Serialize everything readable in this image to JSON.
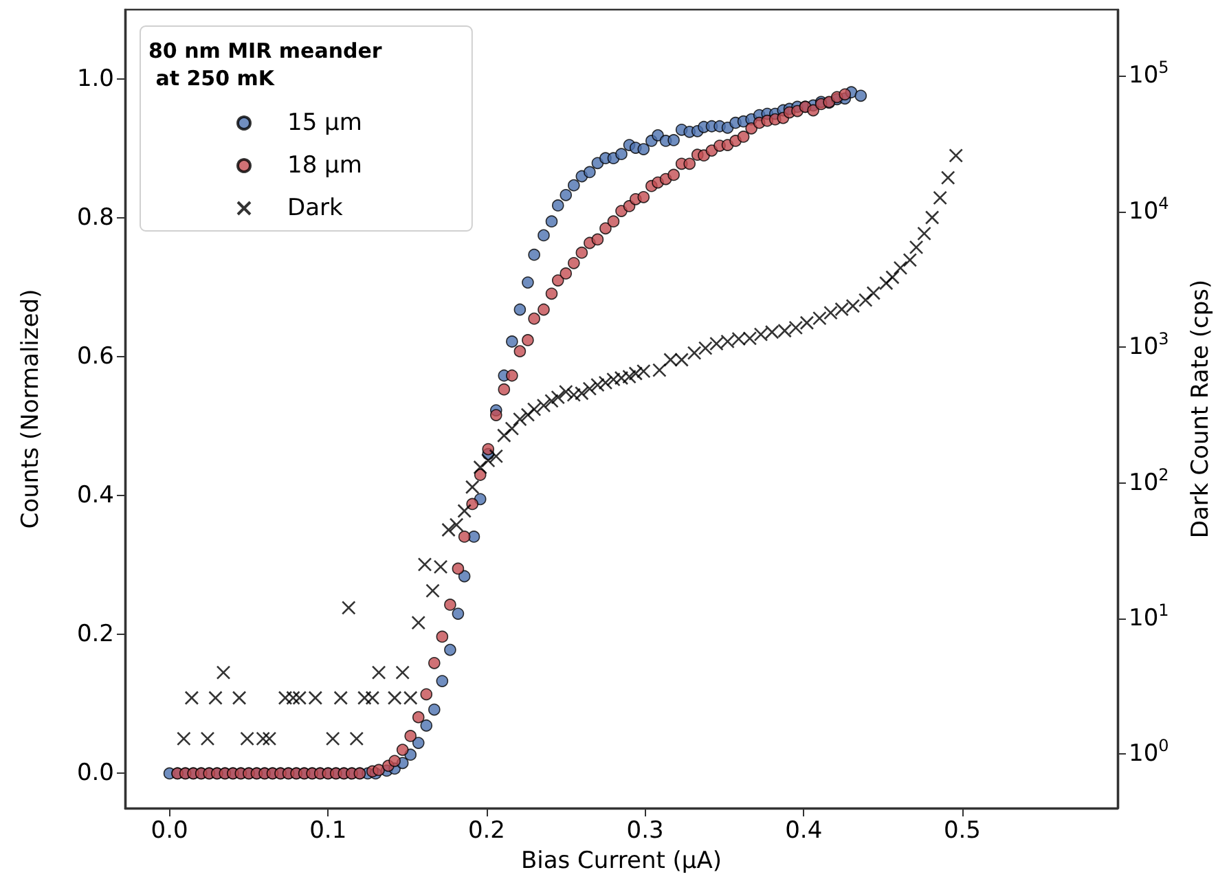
{
  "chart_data": {
    "type": "scatter",
    "xlabel": "Bias Current (μA)",
    "ylabel": "Counts (Normalized)",
    "y2label": "Dark Count Rate (cps)",
    "legend_title": "80 nm MIR meander at 250 mK",
    "legend": "top left",
    "grid": false,
    "xlim": [
      -0.028,
      0.598
    ],
    "xticks": [
      {
        "value": 0,
        "label": "0.0"
      },
      {
        "value": 0.1,
        "label": "0.1"
      },
      {
        "value": 0.2,
        "label": "0.2"
      },
      {
        "value": 0.3,
        "label": "0.3"
      },
      {
        "value": 0.4,
        "label": "0.4"
      },
      {
        "value": 0.5,
        "label": "0.5"
      }
    ],
    "ylim": [
      -0.05,
      1.1
    ],
    "yticks": [
      {
        "value": 0,
        "label": "0.0"
      },
      {
        "value": 0.2,
        "label": "0.2"
      },
      {
        "value": 0.4,
        "label": "0.4"
      },
      {
        "value": 0.6,
        "label": "0.6"
      },
      {
        "value": 0.8,
        "label": "0.8"
      },
      {
        "value": 1,
        "label": "1.0"
      }
    ],
    "log": "y2",
    "y2lim": [
      0.4,
      307000
    ],
    "y2ticks": [
      {
        "value": 1,
        "label": "10$^{0}$"
      },
      {
        "value": 10,
        "label": "10$^{1}$"
      },
      {
        "value": 100,
        "label": "10$^{2}$"
      },
      {
        "value": 1000,
        "label": "10$^{3}$"
      },
      {
        "value": 10000,
        "label": "10$^{4}$"
      },
      {
        "value": 100000,
        "label": "10$^{5}$"
      }
    ],
    "series": [
      {
        "name": "15 μm",
        "color": "#4c72b0",
        "marker": "circle",
        "x": [
          0,
          0.005,
          0.01,
          0.015,
          0.02,
          0.025,
          0.03,
          0.035,
          0.04,
          0.045,
          0.05,
          0.055,
          0.06,
          0.065,
          0.07,
          0.075,
          0.08,
          0.085,
          0.09,
          0.095,
          0.1,
          0.105,
          0.11,
          0.115,
          0.12,
          0.125,
          0.13,
          0.137,
          0.142,
          0.147,
          0.152,
          0.157,
          0.162,
          0.167,
          0.172,
          0.177,
          0.182,
          0.186,
          0.192,
          0.196,
          0.201,
          0.206,
          0.211,
          0.216,
          0.221,
          0.226,
          0.23,
          0.236,
          0.241,
          0.245,
          0.25,
          0.255,
          0.26,
          0.265,
          0.27,
          0.275,
          0.28,
          0.285,
          0.29,
          0.294,
          0.299,
          0.304,
          0.308,
          0.313,
          0.318,
          0.323,
          0.328,
          0.333,
          0.337,
          0.342,
          0.347,
          0.352,
          0.357,
          0.362,
          0.367,
          0.372,
          0.377,
          0.382,
          0.387,
          0.391,
          0.396,
          0.401,
          0.406,
          0.411,
          0.416,
          0.421,
          0.426,
          0.43,
          0.436
        ],
        "values": [
          0,
          0,
          0,
          0,
          0,
          0,
          0,
          0,
          0,
          0,
          0,
          0,
          0,
          0,
          0,
          0,
          0,
          0,
          0,
          0,
          0,
          0,
          0,
          0,
          0,
          0,
          0,
          0.004,
          0.007,
          0.015,
          0.027,
          0.044,
          0.069,
          0.092,
          0.133,
          0.178,
          0.23,
          0.284,
          0.341,
          0.395,
          0.46,
          0.523,
          0.573,
          0.622,
          0.668,
          0.707,
          0.747,
          0.775,
          0.795,
          0.818,
          0.833,
          0.847,
          0.86,
          0.866,
          0.879,
          0.886,
          0.886,
          0.892,
          0.905,
          0.901,
          0.899,
          0.911,
          0.919,
          0.911,
          0.912,
          0.927,
          0.924,
          0.925,
          0.931,
          0.932,
          0.932,
          0.93,
          0.937,
          0.939,
          0.942,
          0.948,
          0.95,
          0.95,
          0.955,
          0.957,
          0.96,
          0.96,
          0.962,
          0.967,
          0.966,
          0.971,
          0.972,
          0.981,
          0.976
        ]
      },
      {
        "name": "18 μm",
        "color": "#c44e52",
        "marker": "circle",
        "x": [
          0.005,
          0.01,
          0.015,
          0.02,
          0.025,
          0.03,
          0.035,
          0.04,
          0.045,
          0.05,
          0.055,
          0.06,
          0.065,
          0.07,
          0.075,
          0.08,
          0.085,
          0.09,
          0.095,
          0.1,
          0.105,
          0.11,
          0.115,
          0.12,
          0.128,
          0.132,
          0.138,
          0.142,
          0.147,
          0.152,
          0.157,
          0.162,
          0.167,
          0.172,
          0.177,
          0.182,
          0.186,
          0.191,
          0.196,
          0.201,
          0.206,
          0.211,
          0.216,
          0.221,
          0.226,
          0.23,
          0.236,
          0.241,
          0.245,
          0.25,
          0.255,
          0.26,
          0.265,
          0.27,
          0.275,
          0.28,
          0.285,
          0.29,
          0.294,
          0.299,
          0.304,
          0.308,
          0.313,
          0.318,
          0.323,
          0.328,
          0.333,
          0.337,
          0.342,
          0.347,
          0.352,
          0.357,
          0.362,
          0.367,
          0.372,
          0.377,
          0.382,
          0.387,
          0.391,
          0.396,
          0.401,
          0.406,
          0.411,
          0.416,
          0.421,
          0.426
        ],
        "values": [
          0,
          0,
          0,
          0,
          0,
          0,
          0,
          0,
          0,
          0,
          0,
          0,
          0,
          0,
          0,
          0,
          0,
          0,
          0,
          0,
          0,
          0,
          0,
          0,
          0.003,
          0.005,
          0.011,
          0.018,
          0.034,
          0.054,
          0.081,
          0.114,
          0.159,
          0.197,
          0.243,
          0.295,
          0.341,
          0.388,
          0.43,
          0.467,
          0.516,
          0.553,
          0.573,
          0.608,
          0.624,
          0.655,
          0.668,
          0.691,
          0.71,
          0.72,
          0.735,
          0.75,
          0.764,
          0.769,
          0.785,
          0.795,
          0.81,
          0.817,
          0.827,
          0.83,
          0.846,
          0.851,
          0.856,
          0.862,
          0.878,
          0.878,
          0.891,
          0.89,
          0.897,
          0.904,
          0.905,
          0.911,
          0.917,
          0.929,
          0.937,
          0.94,
          0.942,
          0.944,
          0.952,
          0.954,
          0.96,
          0.955,
          0.964,
          0.967,
          0.974,
          0.978
        ]
      },
      {
        "name": "Dark",
        "color": "#000000",
        "marker": "cross",
        "axis": "y2",
        "x": [
          0.009,
          0.014,
          0.024,
          0.029,
          0.034,
          0.044,
          0.049,
          0.059,
          0.063,
          0.073,
          0.078,
          0.082,
          0.092,
          0.103,
          0.108,
          0.113,
          0.118,
          0.123,
          0.128,
          0.132,
          0.142,
          0.147,
          0.152,
          0.157,
          0.161,
          0.166,
          0.171,
          0.176,
          0.181,
          0.186,
          0.191,
          0.196,
          0.201,
          0.206,
          0.211,
          0.216,
          0.221,
          0.226,
          0.23,
          0.236,
          0.241,
          0.245,
          0.25,
          0.255,
          0.26,
          0.265,
          0.27,
          0.275,
          0.28,
          0.285,
          0.29,
          0.294,
          0.299,
          0.309,
          0.316,
          0.323,
          0.331,
          0.338,
          0.345,
          0.352,
          0.359,
          0.366,
          0.373,
          0.38,
          0.388,
          0.395,
          0.402,
          0.41,
          0.417,
          0.424,
          0.431,
          0.439,
          0.444,
          0.452,
          0.456,
          0.461,
          0.467,
          0.471,
          0.476,
          0.481,
          0.486,
          0.491,
          0.496
        ],
        "values": [
          1.3,
          2.6,
          1.3,
          2.6,
          4,
          2.6,
          1.3,
          1.3,
          1.3,
          2.6,
          2.6,
          2.6,
          2.6,
          1.3,
          2.6,
          12,
          1.3,
          2.6,
          2.6,
          4,
          2.6,
          4,
          2.6,
          9.3,
          25,
          16,
          24,
          45,
          49,
          62,
          93,
          130,
          146,
          157,
          223,
          251,
          294,
          317,
          348,
          371,
          401,
          427,
          468,
          444,
          457,
          494,
          526,
          547,
          578,
          592,
          605,
          639,
          664,
          676,
          807,
          807,
          906,
          982,
          1060,
          1100,
          1150,
          1160,
          1240,
          1290,
          1320,
          1390,
          1510,
          1630,
          1790,
          1900,
          2010,
          2220,
          2500,
          2960,
          3270,
          3830,
          4380,
          5440,
          6870,
          9020,
          12600,
          17700,
          25800
        ]
      }
    ]
  }
}
